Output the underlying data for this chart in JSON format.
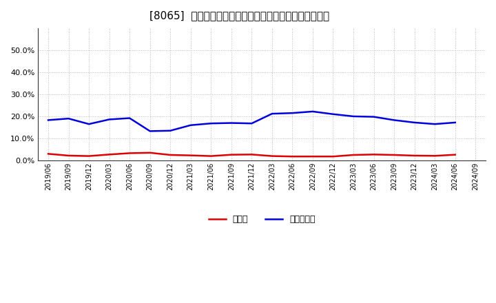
{
  "title": "[8065]  現預金、有利子負債の総資産に対する比率の推移",
  "x_labels": [
    "2019/06",
    "2019/09",
    "2019/12",
    "2020/03",
    "2020/06",
    "2020/09",
    "2020/12",
    "2021/03",
    "2021/06",
    "2021/09",
    "2021/12",
    "2022/03",
    "2022/06",
    "2022/09",
    "2022/12",
    "2023/03",
    "2023/06",
    "2023/09",
    "2023/12",
    "2024/03",
    "2024/06",
    "2024/09"
  ],
  "cash_values": [
    0.03,
    0.022,
    0.02,
    0.027,
    0.033,
    0.035,
    0.025,
    0.023,
    0.02,
    0.026,
    0.027,
    0.02,
    0.018,
    0.018,
    0.018,
    0.025,
    0.027,
    0.025,
    0.022,
    0.021,
    0.026,
    null
  ],
  "debt_values": [
    0.183,
    0.19,
    0.165,
    0.186,
    0.192,
    0.133,
    0.135,
    0.16,
    0.168,
    0.17,
    0.168,
    0.212,
    0.215,
    0.222,
    0.21,
    0.2,
    0.198,
    0.183,
    0.172,
    0.165,
    0.172,
    null
  ],
  "cash_color": "#dd0000",
  "debt_color": "#0000dd",
  "background_color": "#ffffff",
  "plot_bg_color": "#ffffff",
  "grid_color": "#bbbbbb",
  "ylim": [
    0.0,
    0.6
  ],
  "yticks": [
    0.0,
    0.1,
    0.2,
    0.3,
    0.4,
    0.5
  ],
  "legend_cash": "現預金",
  "legend_debt": "有利子負債",
  "line_width": 1.8,
  "title_fontsize": 11,
  "tick_fontsize": 8,
  "legend_fontsize": 9
}
